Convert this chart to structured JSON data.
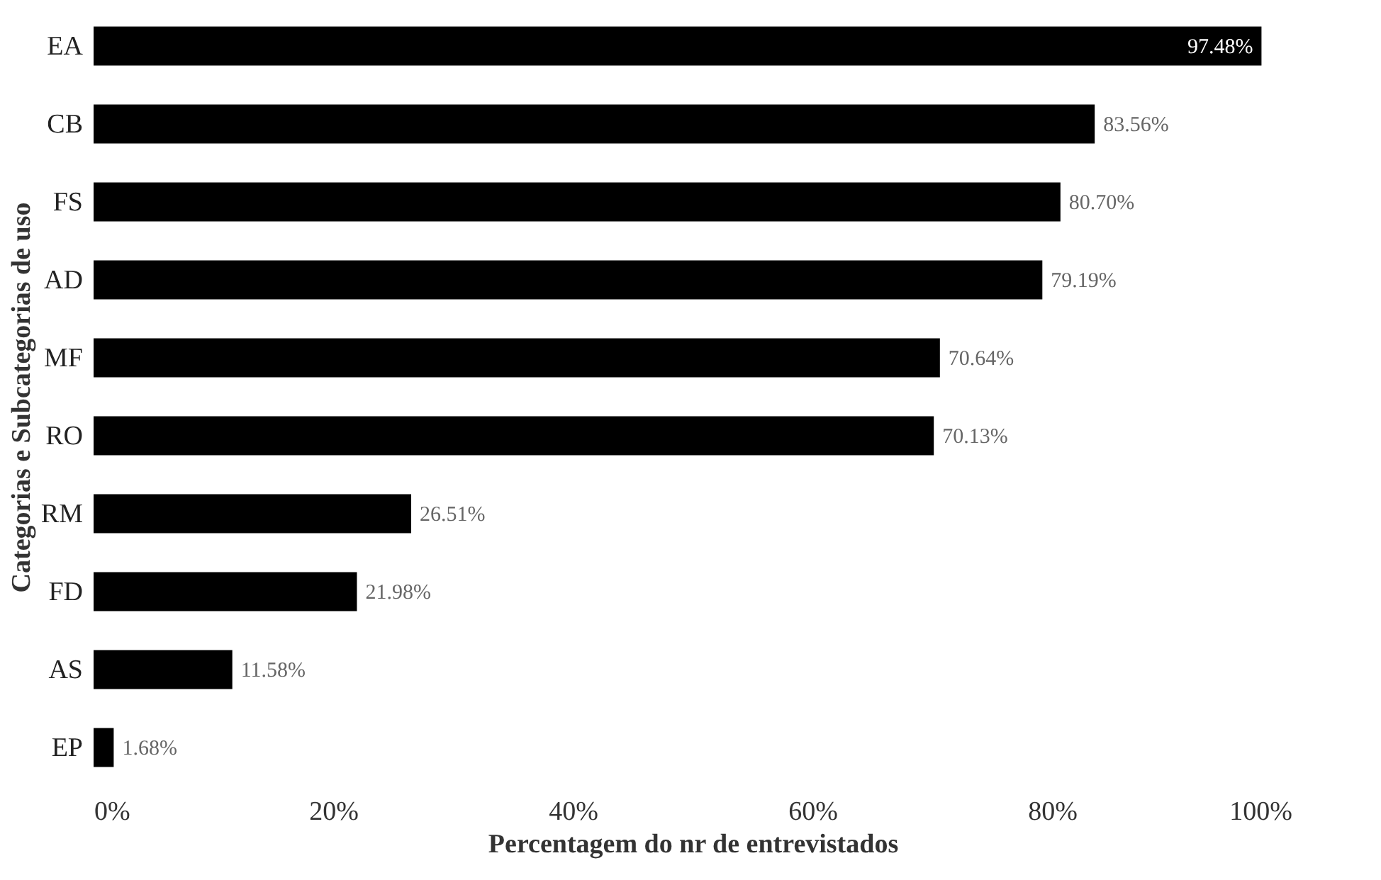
{
  "chart_data": {
    "type": "bar",
    "orientation": "horizontal",
    "xlabel": "Percentagem do nr de entrevistados",
    "ylabel": "Categorias e Subcategorias de uso",
    "categories": [
      "EA",
      "CB",
      "FS",
      "AD",
      "MF",
      "RO",
      "RM",
      "FD",
      "AS",
      "EP"
    ],
    "values": [
      97.48,
      83.56,
      80.7,
      79.19,
      70.64,
      70.13,
      26.51,
      21.98,
      11.58,
      1.68
    ],
    "value_labels": [
      "97.48%",
      "83.56%",
      "80.70%",
      "79.19%",
      "70.64%",
      "70.13%",
      "26.51%",
      "21.98%",
      "11.58%",
      "1.68%"
    ],
    "color": "#000000",
    "xlim": [
      0,
      100
    ],
    "xticks": [
      {
        "value": 0,
        "label": "0%"
      },
      {
        "value": 20,
        "label": "20%"
      },
      {
        "value": 40,
        "label": "40%"
      },
      {
        "value": 60,
        "label": "60%"
      },
      {
        "value": 80,
        "label": "80%"
      },
      {
        "value": 100,
        "label": "100%"
      }
    ],
    "grid": false
  }
}
